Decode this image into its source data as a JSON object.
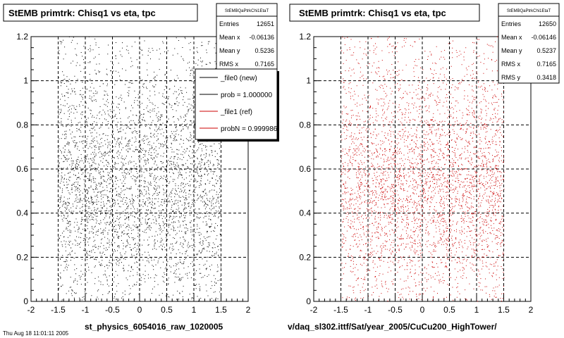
{
  "panels": [
    {
      "title": "StEMB primtrk: Chisq1 vs eta, tpc",
      "stats": {
        "name": "StEMBQaPtrkChi1EtaT",
        "rows": [
          {
            "label": "Entries",
            "value": "12651"
          },
          {
            "label": "Mean x",
            "value": "-0.06136"
          },
          {
            "label": "Mean y",
            "value": "0.5236"
          },
          {
            "label": "RMS x",
            "value": "0.7165"
          }
        ]
      },
      "legend": [
        {
          "label": "_file0 (new)",
          "color": "#000000"
        },
        {
          "label": "prob = 1.000000",
          "color": "#000000"
        },
        {
          "label": "_file1 (ref)",
          "color": "#cc0000"
        },
        {
          "label": "probN = 0.999986",
          "color": "#cc0000"
        }
      ],
      "footer": "st_physics_6054016_raw_1020005",
      "footer_small": "Thu Aug 18 11:01:11 2005"
    },
    {
      "title": "StEMB primtrk: Chisq1 vs eta, tpc",
      "stats": {
        "name": "StEMBQaPtrkChi1EtaT",
        "rows": [
          {
            "label": "Entries",
            "value": "12650"
          },
          {
            "label": "Mean x",
            "value": "-0.06146"
          },
          {
            "label": "Mean y",
            "value": "0.5237"
          },
          {
            "label": "RMS x",
            "value": "0.7165"
          },
          {
            "label": "RMS y",
            "value": "0.3418"
          }
        ]
      },
      "legend": [],
      "footer": "v/daq_sl302.ittf/Sat/year_2005/CuCu200_HighTower/",
      "footer_small": ""
    }
  ],
  "chart_data": [
    {
      "type": "scatter",
      "title": "StEMB primtrk: Chisq1 vs eta, tpc",
      "xlim": [
        -2,
        2
      ],
      "ylim": [
        0,
        1.2
      ],
      "xticks": [
        -2,
        -1.5,
        -1,
        -0.5,
        0,
        0.5,
        1,
        1.5,
        2
      ],
      "yticks": [
        0,
        0.2,
        0.4,
        0.6,
        0.8,
        1,
        1.2
      ],
      "grid": true,
      "legend_position": "top-right",
      "point_color": "#000000",
      "series": [
        {
          "name": "_file0 (new)",
          "entries": 12651,
          "mean_x": -0.06136,
          "mean_y": 0.5236,
          "rms_x": 0.7165,
          "x_range": [
            -1.5,
            1.5
          ],
          "y_range": [
            0,
            1.2
          ]
        }
      ]
    },
    {
      "type": "scatter",
      "title": "StEMB primtrk: Chisq1 vs eta, tpc",
      "xlim": [
        -2,
        2
      ],
      "ylim": [
        0,
        1.2
      ],
      "xticks": [
        -2,
        -1.5,
        -1,
        -0.5,
        0,
        0.5,
        1,
        1.5,
        2
      ],
      "yticks": [
        0,
        0.2,
        0.4,
        0.6,
        0.8,
        1,
        1.2
      ],
      "grid": true,
      "point_color": "#cc0000",
      "series": [
        {
          "name": "_file1 (ref)",
          "entries": 12650,
          "mean_x": -0.06146,
          "mean_y": 0.5237,
          "rms_x": 0.7165,
          "rms_y": 0.3418,
          "x_range": [
            -1.5,
            1.5
          ],
          "y_range": [
            0,
            1.2
          ]
        }
      ]
    }
  ]
}
